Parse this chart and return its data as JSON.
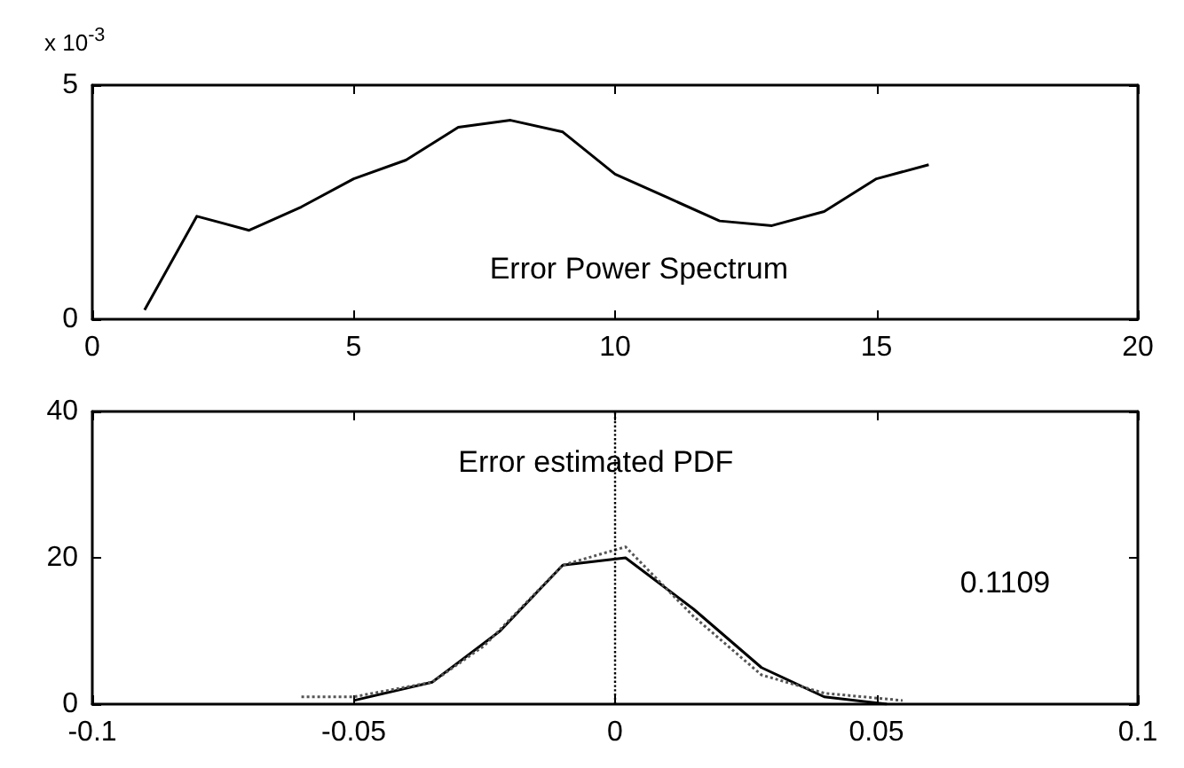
{
  "chart_data": [
    {
      "type": "line",
      "title": "Error Power Spectrum",
      "annotations": [
        "x 10$^{-3}$"
      ],
      "x": [
        1,
        2,
        3,
        4,
        5,
        6,
        7,
        8,
        9,
        10,
        11,
        12,
        13,
        14,
        15,
        16
      ],
      "series": [
        {
          "color": "#000000",
          "values": [
            0.2,
            2.2,
            1.9,
            2.4,
            3.0,
            3.4,
            4.1,
            4.25,
            4.0,
            3.1,
            2.6,
            2.1,
            2.0,
            2.3,
            3.0,
            3.3
          ]
        }
      ],
      "xlim": [
        0,
        20
      ],
      "xticks": [
        0,
        5,
        10,
        15,
        20
      ],
      "ylim": [
        0,
        5
      ],
      "yticks": [
        0,
        5
      ],
      "grid": false,
      "marker": "none",
      "line_style": "solid"
    },
    {
      "type": "line",
      "title": "Error estimated PDF",
      "annotations": [
        "0.1109"
      ],
      "series": [
        {
          "color": "#000000",
          "line_style": "solid",
          "x": [
            -0.05,
            -0.035,
            -0.022,
            -0.01,
            0.002,
            0.015,
            0.028,
            0.04,
            0.052
          ],
          "values": [
            0.5,
            3,
            10,
            19,
            20,
            13,
            5,
            1,
            0
          ]
        },
        {
          "color": "#555555",
          "line_style": "dotted",
          "x": [
            -0.06,
            -0.05,
            -0.035,
            -0.025,
            -0.01,
            0.002,
            0.015,
            0.028,
            0.04,
            0.055
          ],
          "values": [
            1,
            1,
            3,
            8,
            19,
            21.5,
            12,
            4,
            1.5,
            0.5
          ]
        }
      ],
      "ref_lines": [
        {
          "axis": "x",
          "value": 0,
          "line_style": "dotted",
          "color": "#000000"
        }
      ],
      "xlim": [
        -0.1,
        0.1
      ],
      "xticks": [
        -0.1,
        -0.05,
        0,
        0.05,
        0.1
      ],
      "ylim": [
        0,
        40
      ],
      "yticks": [
        0,
        20,
        40
      ],
      "grid": false,
      "marker": "none"
    }
  ]
}
